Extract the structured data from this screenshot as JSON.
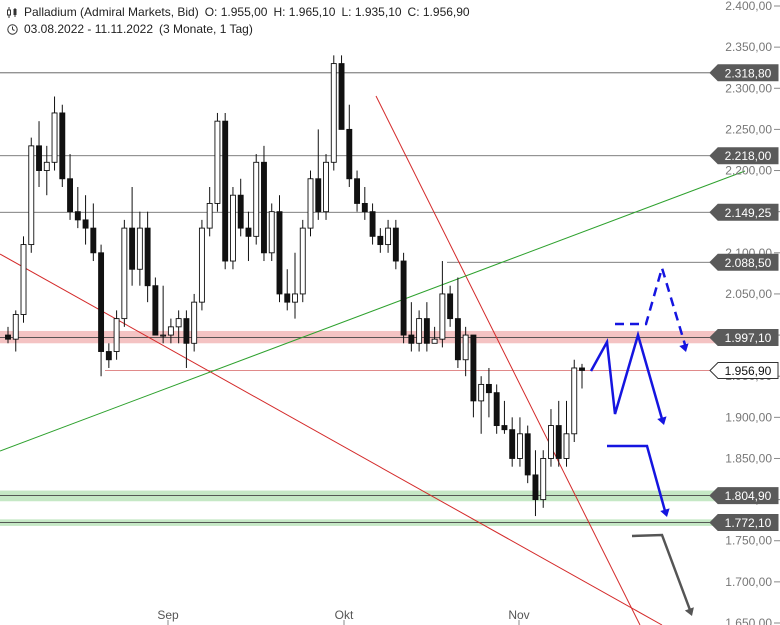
{
  "header": {
    "instrument": "Palladium (Admiral Markets, Bid)",
    "open": "O: 1.955,00",
    "high": "H: 1.965,10",
    "low": "L: 1.935,10",
    "close": "C: 1.956,90",
    "range": "03.08.2022 - 11.11.2022",
    "period": "(3 Monate, 1 Tag)"
  },
  "chart_data": {
    "type": "candlestick",
    "x_ticks": [
      "Sep",
      "Okt",
      "Nov"
    ],
    "y_ticks": [
      "2.400,00",
      "2.350,00",
      "2.300,00",
      "2.250,00",
      "2.200,00",
      "2.150,00",
      "2.100,00",
      "2.050,00",
      "2.000,00",
      "1.950,00",
      "1.900,00",
      "1.850,00",
      "1.800,00",
      "1.750,00",
      "1.700,00",
      "1.650,00"
    ],
    "ylim": [
      1650,
      2400
    ],
    "price_labels": [
      {
        "text": "2.318,80",
        "value": 2318.8,
        "style": "dark"
      },
      {
        "text": "2.218,00",
        "value": 2218.0,
        "style": "dark"
      },
      {
        "text": "2.149,25",
        "value": 2149.25,
        "style": "dark"
      },
      {
        "text": "2.088,50",
        "value": 2088.5,
        "style": "dark"
      },
      {
        "text": "1.997,10",
        "value": 1997.1,
        "style": "dark"
      },
      {
        "text": "1.956,90",
        "value": 1956.9,
        "style": "last"
      },
      {
        "text": "1.804,90",
        "value": 1804.9,
        "style": "dark"
      },
      {
        "text": "1.772,10",
        "value": 1772.1,
        "style": "dark"
      }
    ],
    "candles": [
      [
        2000,
        2010,
        1990,
        1995
      ],
      [
        1995,
        2030,
        1980,
        2025
      ],
      [
        2025,
        2120,
        2015,
        2110
      ],
      [
        2110,
        2240,
        2100,
        2230
      ],
      [
        2230,
        2260,
        2180,
        2200
      ],
      [
        2200,
        2230,
        2170,
        2210
      ],
      [
        2210,
        2290,
        2200,
        2270
      ],
      [
        2270,
        2280,
        2180,
        2190
      ],
      [
        2190,
        2220,
        2140,
        2150
      ],
      [
        2150,
        2180,
        2130,
        2140
      ],
      [
        2140,
        2170,
        2110,
        2130
      ],
      [
        2130,
        2160,
        2090,
        2100
      ],
      [
        2100,
        2110,
        1950,
        1980
      ],
      [
        1980,
        1990,
        1960,
        1970
      ],
      [
        1980,
        2030,
        1970,
        2020
      ],
      [
        2020,
        2140,
        2010,
        2130
      ],
      [
        2130,
        2180,
        2060,
        2080
      ],
      [
        2080,
        2150,
        2060,
        2130
      ],
      [
        2130,
        2150,
        2040,
        2060
      ],
      [
        2060,
        2070,
        2000,
        2000
      ],
      [
        2000,
        2060,
        1990,
        2000
      ],
      [
        2000,
        2020,
        1990,
        2010
      ],
      [
        2010,
        2030,
        1990,
        2020
      ],
      [
        2020,
        2030,
        1960,
        1990
      ],
      [
        1990,
        2050,
        1980,
        2040
      ],
      [
        2040,
        2140,
        2030,
        2130
      ],
      [
        2130,
        2180,
        2120,
        2160
      ],
      [
        2160,
        2270,
        2150,
        2260
      ],
      [
        2260,
        2270,
        2080,
        2090
      ],
      [
        2090,
        2180,
        2080,
        2170
      ],
      [
        2170,
        2190,
        2120,
        2130
      ],
      [
        2130,
        2150,
        2090,
        2120
      ],
      [
        2120,
        2220,
        2110,
        2210
      ],
      [
        2210,
        2230,
        2090,
        2100
      ],
      [
        2100,
        2160,
        2090,
        2150
      ],
      [
        2150,
        2170,
        2040,
        2050
      ],
      [
        2050,
        2080,
        2030,
        2040
      ],
      [
        2040,
        2100,
        2020,
        2050
      ],
      [
        2050,
        2140,
        2040,
        2130
      ],
      [
        2130,
        2200,
        2120,
        2190
      ],
      [
        2190,
        2250,
        2140,
        2150
      ],
      [
        2150,
        2220,
        2140,
        2210
      ],
      [
        2210,
        2340,
        2200,
        2330
      ],
      [
        2330,
        2340,
        2250,
        2250
      ],
      [
        2250,
        2280,
        2180,
        2190
      ],
      [
        2190,
        2200,
        2150,
        2160
      ],
      [
        2160,
        2180,
        2140,
        2150
      ],
      [
        2150,
        2160,
        2110,
        2120
      ],
      [
        2120,
        2130,
        2100,
        2110
      ],
      [
        2110,
        2140,
        2100,
        2130
      ],
      [
        2130,
        2140,
        2080,
        2090
      ],
      [
        2090,
        2100,
        1990,
        2000
      ],
      [
        2000,
        2040,
        1980,
        1990
      ],
      [
        1990,
        2030,
        1980,
        2020
      ],
      [
        2020,
        2040,
        1980,
        1990
      ],
      [
        1990,
        2010,
        1990,
        1995
      ],
      [
        1995,
        2090,
        1985,
        2050
      ],
      [
        2050,
        2060,
        2010,
        2020
      ],
      [
        2020,
        2070,
        1960,
        1970
      ],
      [
        1970,
        2010,
        1950,
        2000
      ],
      [
        2000,
        2000,
        1900,
        1920
      ],
      [
        1920,
        1950,
        1880,
        1940
      ],
      [
        1940,
        1960,
        1900,
        1930
      ],
      [
        1930,
        1940,
        1880,
        1890
      ],
      [
        1890,
        1920,
        1880,
        1885
      ],
      [
        1885,
        1900,
        1840,
        1850
      ],
      [
        1850,
        1900,
        1840,
        1880
      ],
      [
        1880,
        1890,
        1820,
        1830
      ],
      [
        1830,
        1860,
        1780,
        1800
      ],
      [
        1800,
        1860,
        1790,
        1850
      ],
      [
        1850,
        1910,
        1840,
        1890
      ],
      [
        1890,
        1920,
        1840,
        1850
      ],
      [
        1850,
        1920,
        1840,
        1880
      ],
      [
        1880,
        1970,
        1870,
        1960
      ],
      [
        1960,
        1965,
        1935,
        1957
      ]
    ],
    "drawings": {
      "horizontal_levels": [
        2318.8,
        2218.0,
        2149.25,
        2088.5,
        1997.1
      ],
      "resistance_zone": [
        1990,
        2005
      ],
      "support_zones": [
        [
          1798,
          1811
        ],
        [
          1768,
          1776
        ]
      ],
      "forecast_colors": {
        "blue": "#1515e0",
        "grey": "#555555",
        "red_trend": "#d42a2a",
        "green_trend": "#2ea12e"
      }
    }
  }
}
